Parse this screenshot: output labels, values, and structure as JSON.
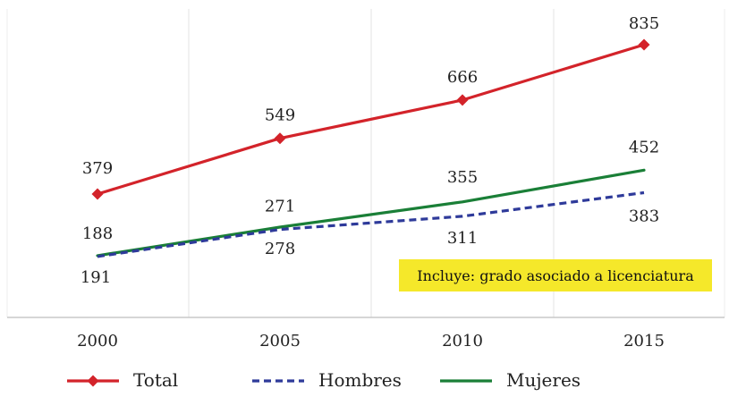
{
  "chart_data": {
    "type": "line",
    "title": "",
    "xlabel": "",
    "ylabel": "",
    "categories": [
      "2000",
      "2005",
      "2010",
      "2015"
    ],
    "ylim": [
      0,
      900
    ],
    "grid": {
      "vertical": true,
      "horizontal": false
    },
    "legend": {
      "position": "bottom"
    },
    "series": [
      {
        "name": "Total",
        "key": "total",
        "values": [
          379,
          549,
          666,
          835
        ],
        "color": "#d3232a",
        "style": "solid",
        "marker": "diamond"
      },
      {
        "name": "Hombres",
        "key": "hombres",
        "values": [
          188,
          271,
          311,
          383
        ],
        "color": "#2e3a9a",
        "style": "dashed",
        "marker": "none"
      },
      {
        "name": "Mujeres",
        "key": "mujeres",
        "values": [
          191,
          278,
          355,
          452
        ],
        "color": "#1a7f37",
        "style": "solid",
        "marker": "none"
      }
    ],
    "annotations": [
      {
        "text": "Incluye: grado asociado a licenciatura",
        "background": "#f5e82a"
      }
    ]
  }
}
